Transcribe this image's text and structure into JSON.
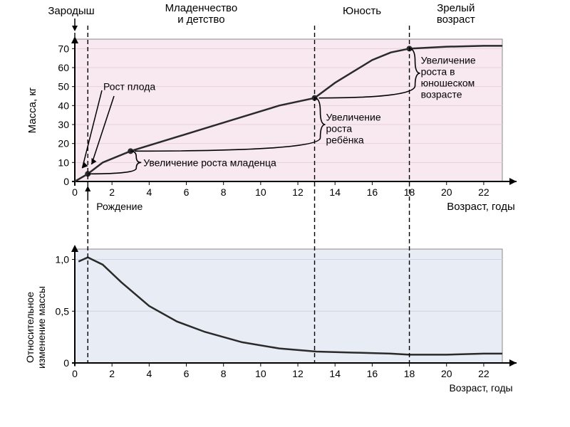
{
  "top_labels": {
    "embryo": "Зародыш",
    "infancy": "Младенчество\nи детство",
    "youth": "Юность",
    "mature": "Зрелый\nвозраст"
  },
  "top_chart": {
    "type": "line",
    "ylabel": "Масса, кг",
    "xlabel": "Возраст, годы",
    "xlim": [
      0,
      23
    ],
    "ylim": [
      0,
      75
    ],
    "yticks": [
      0,
      10,
      20,
      30,
      40,
      50,
      60,
      70
    ],
    "xticks": [
      0,
      2,
      4,
      6,
      8,
      10,
      12,
      14,
      16,
      18,
      20,
      22
    ],
    "background_color": "#f8e8f0",
    "grid_color": "#e8d0d8",
    "curve_color": "#2a2a2a",
    "curve_width": 2.5,
    "marker_color": "#2a2a2a",
    "marker_radius": 4,
    "curve": [
      {
        "x": 0,
        "y": 0
      },
      {
        "x": 0.7,
        "y": 4
      },
      {
        "x": 1.5,
        "y": 10
      },
      {
        "x": 3,
        "y": 16
      },
      {
        "x": 5,
        "y": 22
      },
      {
        "x": 7,
        "y": 28
      },
      {
        "x": 9,
        "y": 34
      },
      {
        "x": 11,
        "y": 40
      },
      {
        "x": 12.9,
        "y": 44
      },
      {
        "x": 14,
        "y": 52
      },
      {
        "x": 15,
        "y": 58
      },
      {
        "x": 16,
        "y": 64
      },
      {
        "x": 17,
        "y": 68
      },
      {
        "x": 18,
        "y": 70
      },
      {
        "x": 20,
        "y": 71
      },
      {
        "x": 22,
        "y": 71.5
      },
      {
        "x": 23,
        "y": 71.5
      }
    ],
    "markers": [
      {
        "x": 0.7,
        "y": 4
      },
      {
        "x": 3,
        "y": 16
      },
      {
        "x": 12.9,
        "y": 44
      },
      {
        "x": 18,
        "y": 70
      }
    ],
    "annotations": {
      "fetal_growth": "Рост плода",
      "birth": "Рождение",
      "infant_growth": "Увеличение роста младенца",
      "child_growth": "Увеличение\nроста\nребёнка",
      "youth_growth": "Увеличение\nроста в\nюношеском\nвозрасте"
    },
    "annotation_fontsize": 14,
    "label_fontsize": 15,
    "tick_fontsize": 14
  },
  "bottom_chart": {
    "type": "line",
    "ylabel": "Относительное\nизменение массы",
    "xlabel": "Возраст, годы",
    "xlim": [
      0,
      23
    ],
    "ylim": [
      0,
      1.1
    ],
    "yticks": [
      0,
      0.5,
      1.0
    ],
    "ytick_labels": [
      "0",
      "0,5",
      "1,0"
    ],
    "xticks": [
      0,
      2,
      4,
      6,
      8,
      10,
      12,
      14,
      16,
      18,
      20,
      22
    ],
    "background_color": "#e8ecf5",
    "grid_color": "#ccd4e8",
    "curve_color": "#2a2a2a",
    "curve_width": 2.5,
    "curve": [
      {
        "x": 0.2,
        "y": 0.98
      },
      {
        "x": 0.7,
        "y": 1.02
      },
      {
        "x": 1.5,
        "y": 0.95
      },
      {
        "x": 2.5,
        "y": 0.78
      },
      {
        "x": 4,
        "y": 0.55
      },
      {
        "x": 5.5,
        "y": 0.4
      },
      {
        "x": 7,
        "y": 0.3
      },
      {
        "x": 9,
        "y": 0.2
      },
      {
        "x": 11,
        "y": 0.14
      },
      {
        "x": 13,
        "y": 0.11
      },
      {
        "x": 15,
        "y": 0.1
      },
      {
        "x": 17,
        "y": 0.09
      },
      {
        "x": 18,
        "y": 0.08
      },
      {
        "x": 20,
        "y": 0.08
      },
      {
        "x": 22,
        "y": 0.09
      },
      {
        "x": 23,
        "y": 0.09
      }
    ],
    "label_fontsize": 14,
    "tick_fontsize": 14
  },
  "vlines_x": [
    0.7,
    12.9,
    18
  ],
  "vline_color": "#000000",
  "vline_dash": "6,4"
}
